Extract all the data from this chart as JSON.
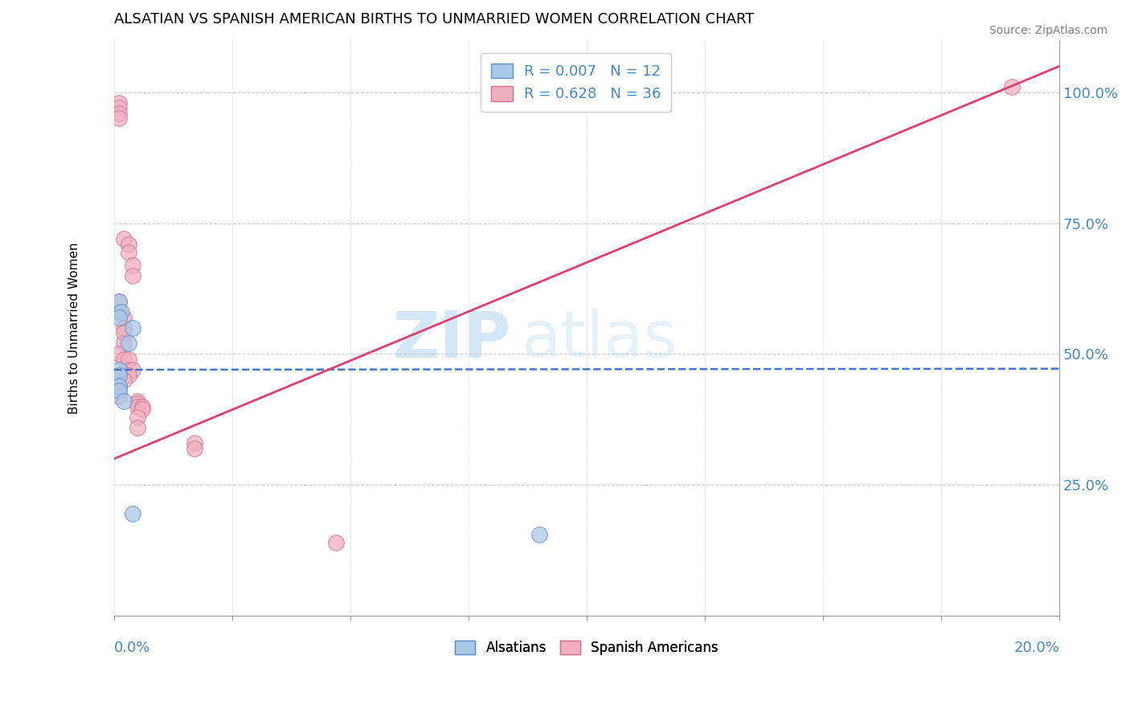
{
  "title": "ALSATIAN VS SPANISH AMERICAN BIRTHS TO UNMARRIED WOMEN CORRELATION CHART",
  "source": "Source: ZipAtlas.com",
  "ylabel": "Births to Unmarried Women",
  "y_tick_labels": [
    "25.0%",
    "50.0%",
    "75.0%",
    "100.0%"
  ],
  "y_tick_values": [
    0.25,
    0.5,
    0.75,
    1.0
  ],
  "x_range": [
    0.0,
    0.2
  ],
  "y_range": [
    0.0,
    1.1
  ],
  "legend_r_blue": "R = 0.007",
  "legend_n_blue": "N = 12",
  "legend_r_pink": "R = 0.628",
  "legend_n_pink": "N = 36",
  "legend_label_blue": "Alsatians",
  "legend_label_pink": "Spanish Americans",
  "watermark_zip": "ZIP",
  "watermark_atlas": "atlas",
  "blue_color": "#a8c8e8",
  "pink_color": "#f0b0c0",
  "blue_edge": "#6090c8",
  "pink_edge": "#d07090",
  "blue_scatter": [
    [
      0.001,
      0.6
    ],
    [
      0.0015,
      0.58
    ],
    [
      0.001,
      0.57
    ],
    [
      0.004,
      0.55
    ],
    [
      0.003,
      0.52
    ],
    [
      0.001,
      0.47
    ],
    [
      0.001,
      0.46
    ],
    [
      0.001,
      0.44
    ],
    [
      0.001,
      0.43
    ],
    [
      0.002,
      0.41
    ],
    [
      0.004,
      0.195
    ],
    [
      0.09,
      0.155
    ]
  ],
  "pink_scatter": [
    [
      0.001,
      0.98
    ],
    [
      0.001,
      0.97
    ],
    [
      0.001,
      0.96
    ],
    [
      0.001,
      0.95
    ],
    [
      0.002,
      0.72
    ],
    [
      0.003,
      0.71
    ],
    [
      0.003,
      0.695
    ],
    [
      0.004,
      0.67
    ],
    [
      0.004,
      0.65
    ],
    [
      0.001,
      0.6
    ],
    [
      0.001,
      0.58
    ],
    [
      0.002,
      0.57
    ],
    [
      0.002,
      0.55
    ],
    [
      0.002,
      0.54
    ],
    [
      0.002,
      0.52
    ],
    [
      0.001,
      0.5
    ],
    [
      0.002,
      0.49
    ],
    [
      0.003,
      0.49
    ],
    [
      0.003,
      0.47
    ],
    [
      0.004,
      0.47
    ],
    [
      0.003,
      0.46
    ],
    [
      0.002,
      0.45
    ],
    [
      0.001,
      0.44
    ],
    [
      0.001,
      0.43
    ],
    [
      0.001,
      0.42
    ],
    [
      0.005,
      0.41
    ],
    [
      0.005,
      0.405
    ],
    [
      0.005,
      0.4
    ],
    [
      0.006,
      0.4
    ],
    [
      0.006,
      0.395
    ],
    [
      0.005,
      0.38
    ],
    [
      0.005,
      0.36
    ],
    [
      0.017,
      0.33
    ],
    [
      0.017,
      0.32
    ],
    [
      0.047,
      0.14
    ],
    [
      0.19,
      1.01
    ]
  ],
  "blue_line_x": [
    0.0,
    0.2
  ],
  "blue_line_y": [
    0.47,
    0.472
  ],
  "pink_line_x": [
    0.0,
    0.2
  ],
  "pink_line_y": [
    0.3,
    1.05
  ]
}
